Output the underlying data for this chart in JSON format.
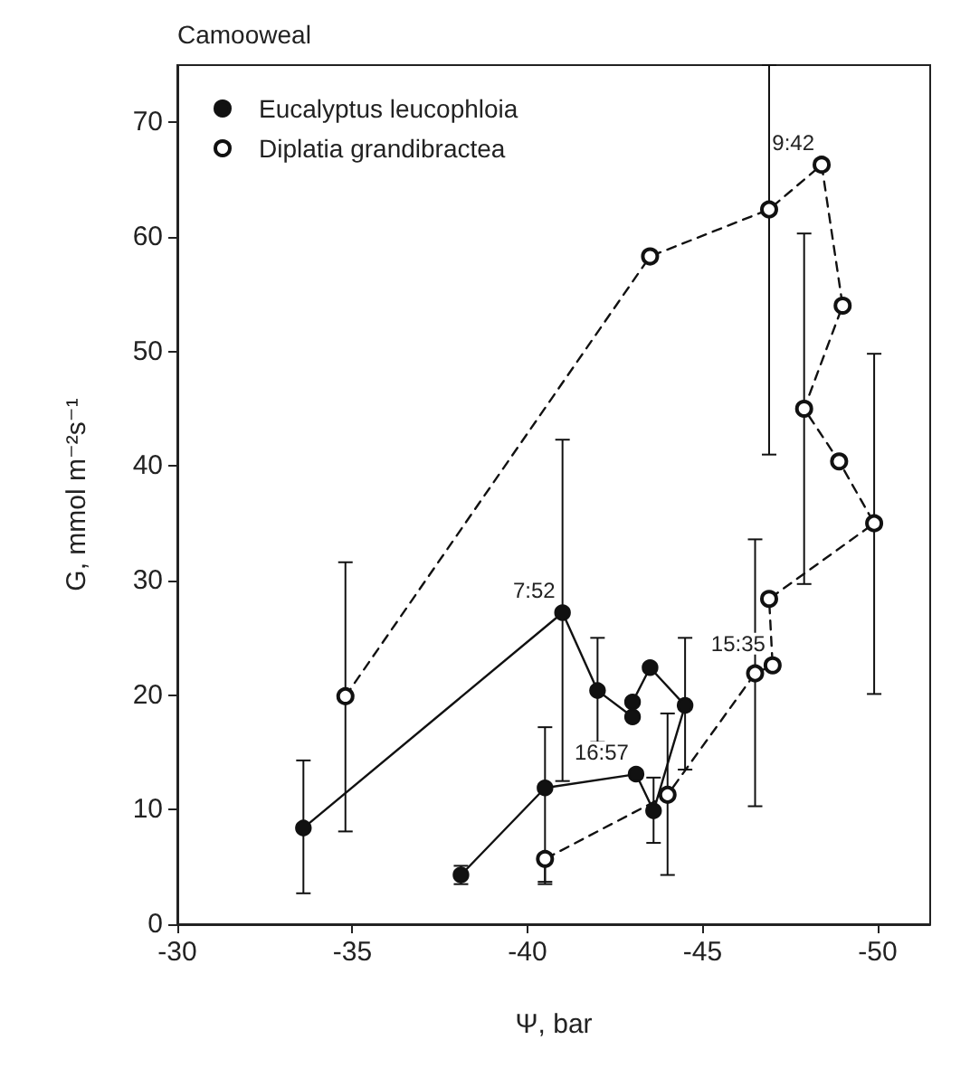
{
  "chart_data": {
    "type": "line",
    "xlabel": "Ψ, bar",
    "ylabel": "G, mmol m⁻²s⁻¹",
    "xlim": [
      -30,
      -51.5
    ],
    "ylim": [
      0,
      75
    ],
    "xticks": [
      -30,
      -35,
      -40,
      -45,
      -50
    ],
    "yticks": [
      0,
      10,
      20,
      30,
      40,
      50,
      60,
      70
    ],
    "grid": false,
    "legend": "top left",
    "marker": "circle",
    "series": [
      {
        "name": "Eucalyptus leucophloia",
        "color": "#111111",
        "line_style": "solid",
        "x": [
          -33.6,
          -41.0,
          -42.0,
          -43.0,
          -43.0,
          -43.5,
          -44.5,
          -43.6,
          -43.1,
          -40.5,
          -38.1
        ],
        "values": [
          8.4,
          27.2,
          20.4,
          18.1,
          19.4,
          22.4,
          19.1,
          9.9,
          13.1,
          11.9,
          4.3
        ],
        "errors": [
          [
            2.7,
            14.3
          ],
          [
            12.5,
            42.3
          ],
          [
            15.9,
            25.0
          ],
          null,
          null,
          null,
          [
            13.5,
            25.0
          ],
          [
            7.1,
            12.8
          ],
          null,
          [
            3.7,
            17.2
          ],
          [
            3.5,
            5.1
          ]
        ]
      },
      {
        "name": "Diplatia grandibractea",
        "color": "#111111",
        "line_style": "dashed",
        "x": [
          -34.8,
          -43.5,
          -46.9,
          -48.4,
          -49.0,
          -47.9,
          -48.9,
          -49.9,
          -46.9,
          -47.0,
          -46.5,
          -44.0,
          -40.5
        ],
        "values": [
          19.9,
          58.3,
          62.4,
          66.3,
          54.0,
          45.0,
          40.4,
          35.0,
          28.4,
          22.6,
          21.9,
          11.3,
          5.7
        ],
        "errors": [
          [
            8.1,
            31.6
          ],
          null,
          [
            41.0,
            75
          ],
          null,
          null,
          [
            29.7,
            60.3
          ],
          null,
          [
            20.1,
            49.8
          ],
          null,
          null,
          [
            10.3,
            33.6
          ],
          [
            4.3,
            18.4
          ],
          [
            3.5,
            5.7
          ]
        ]
      }
    ],
    "annotations": [
      "Camooweal",
      {
        "text": "7:52",
        "x": -41.0,
        "y": 27.2
      },
      {
        "text": "16:57",
        "x": -43.1,
        "y": 13.1
      },
      {
        "text": "9:42",
        "x": -48.4,
        "y": 66.3
      },
      {
        "text": "15:35",
        "x": -47.0,
        "y": 22.6
      }
    ]
  }
}
